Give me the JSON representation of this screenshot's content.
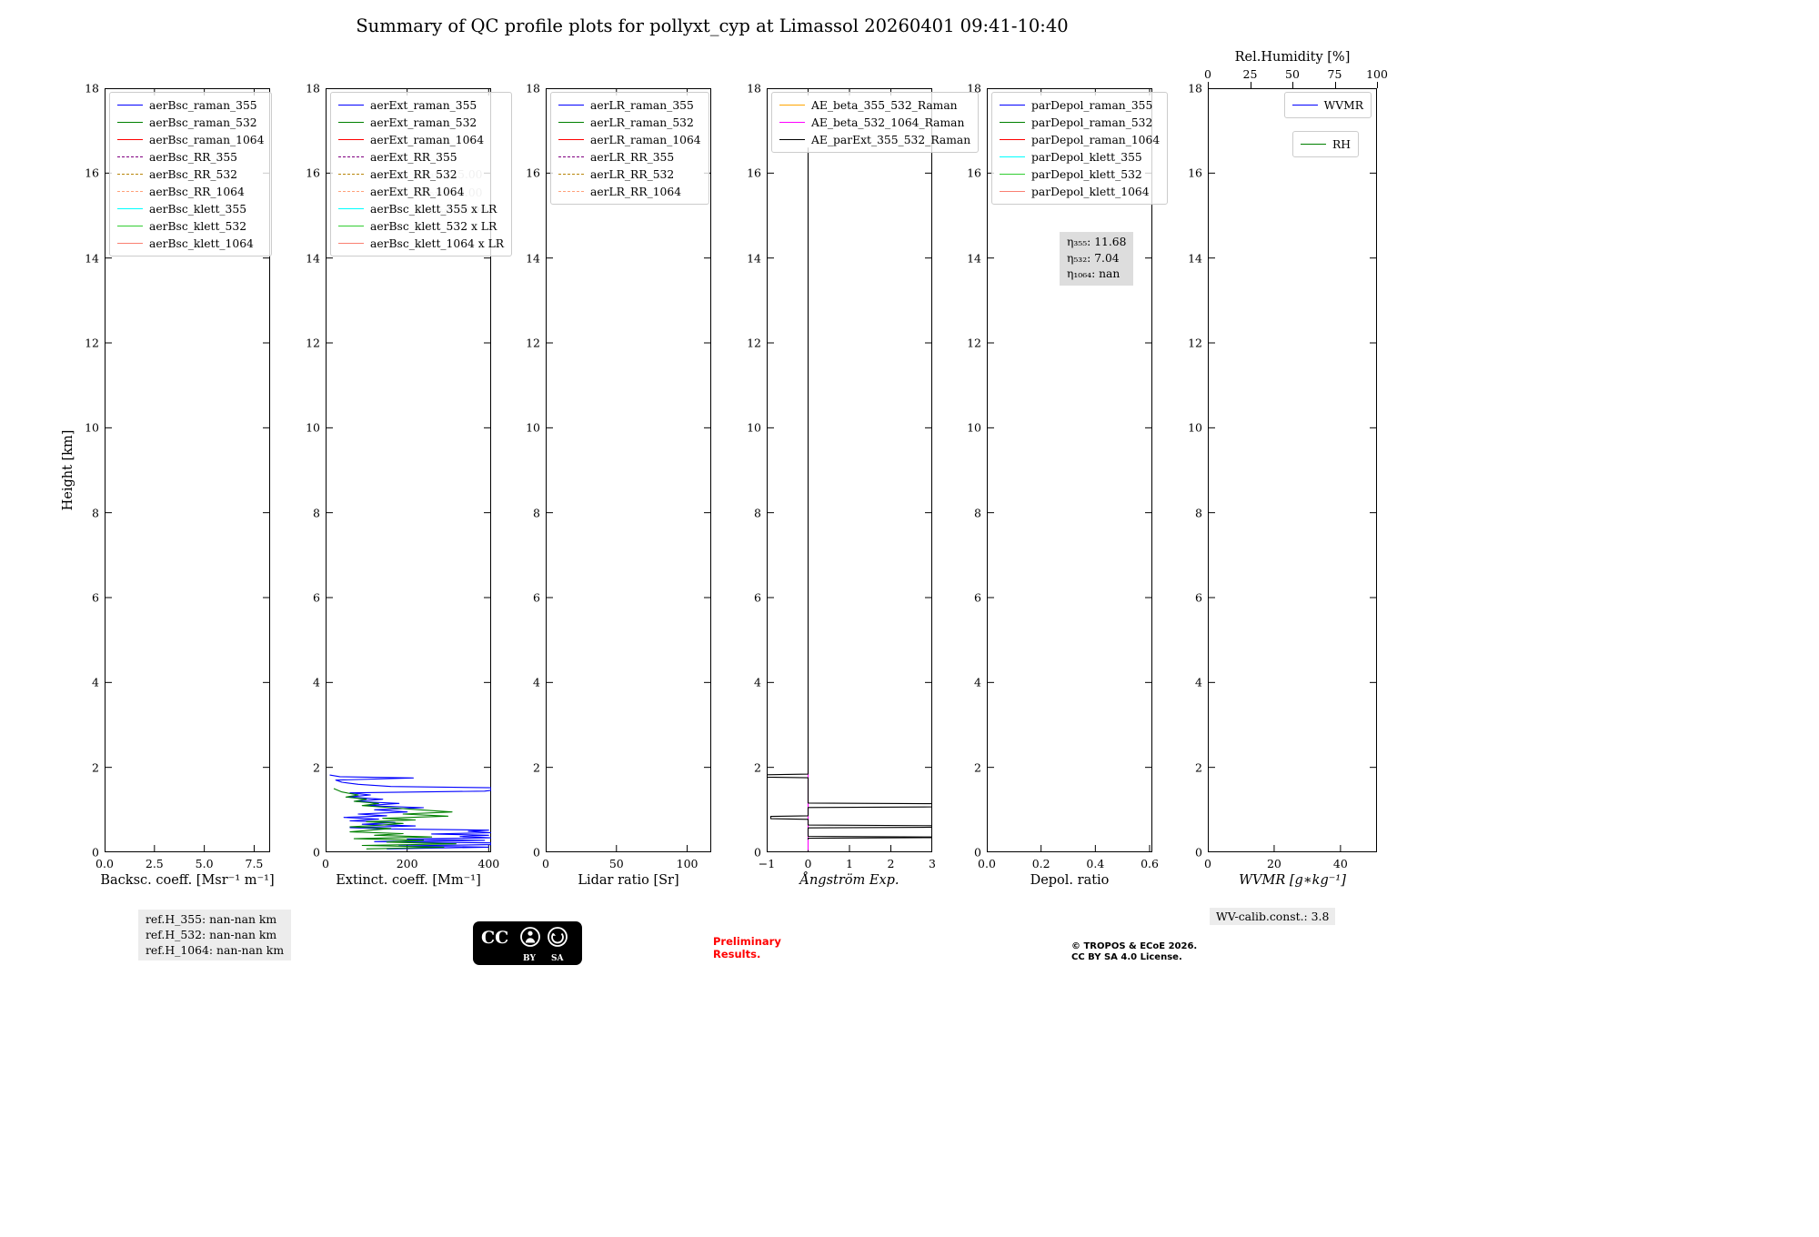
{
  "title": "Summary of QC profile plots for pollyxt_cyp at Limassol 20260401 09:41-10:40",
  "chart_data": {
    "type": "line",
    "title": "Summary of QC profile plots for pollyxt_cyp at Limassol 20260401 09:41-10:40",
    "ylabel": "Height [km]",
    "ylim": [
      0,
      18
    ],
    "yticks": [
      0,
      2,
      4,
      6,
      8,
      10,
      12,
      14,
      16,
      18
    ],
    "panels": [
      {
        "id": "backscatter",
        "xlabel": "Backsc. coeff. [Msr⁻¹ m⁻¹]",
        "xlim": [
          0,
          8.3
        ],
        "xticks": [
          0,
          2.5,
          5,
          7.5
        ],
        "xtick_labels": [
          "0.0",
          "2.5",
          "5.0",
          "7.5"
        ],
        "legend": [
          {
            "label": "aerBsc_raman_355",
            "color": "#0000ff",
            "dash": false
          },
          {
            "label": "aerBsc_raman_532",
            "color": "#008000",
            "dash": false
          },
          {
            "label": "aerBsc_raman_1064",
            "color": "#ff0000",
            "dash": false
          },
          {
            "label": "aerBsc_RR_355",
            "color": "#800080",
            "dash": true
          },
          {
            "label": "aerBsc_RR_532",
            "color": "#b8860b",
            "dash": true
          },
          {
            "label": "aerBsc_RR_1064",
            "color": "#ffa07a",
            "dash": true
          },
          {
            "label": "aerBsc_klett_355",
            "color": "#00ffff",
            "dash": false
          },
          {
            "label": "aerBsc_klett_532",
            "color": "#32cd32",
            "dash": false
          },
          {
            "label": "aerBsc_klett_1064",
            "color": "#fa8072",
            "dash": false
          }
        ],
        "series": []
      },
      {
        "id": "extinction",
        "xlabel": "Extinct. coeff. [Mm⁻¹]",
        "xlim": [
          0,
          406
        ],
        "xticks": [
          0,
          200,
          400
        ],
        "xtick_labels": [
          "0",
          "200",
          "400"
        ],
        "legend": [
          {
            "label": "aerExt_raman_355",
            "color": "#0000ff",
            "dash": false
          },
          {
            "label": "aerExt_raman_532",
            "color": "#008000",
            "dash": false
          },
          {
            "label": "aerExt_raman_1064",
            "color": "#ff0000",
            "dash": false
          },
          {
            "label": "aerExt_RR_355",
            "color": "#800080",
            "dash": true
          },
          {
            "label": "aerExt_RR_532",
            "color": "#b8860b",
            "dash": true
          },
          {
            "label": "aerExt_RR_1064",
            "color": "#ffa07a",
            "dash": true
          },
          {
            "label": "aerBsc_klett_355 x LR",
            "color": "#00ffff",
            "dash": false
          },
          {
            "label": "aerBsc_klett_532 x LR",
            "color": "#32cd32",
            "dash": false
          },
          {
            "label": "aerBsc_klett_1064 x LR",
            "color": "#fa8072",
            "dash": false
          }
        ],
        "annotation": {
          "kind": "plain",
          "lines": [
            "LR₃₅₅: 45.00",
            "LR₅₃₂: 40.00",
            "LR₁₀₆₄: 50.00"
          ]
        },
        "series": [
          {
            "name": "aerExt_raman_355",
            "color": "#0000ff",
            "points": [
              [
                150,
                0.08
              ],
              [
                400,
                0.12
              ],
              [
                180,
                0.15
              ],
              [
                406,
                0.18
              ],
              [
                406,
                0.22
              ],
              [
                120,
                0.25
              ],
              [
                390,
                0.28
              ],
              [
                200,
                0.31
              ],
              [
                406,
                0.34
              ],
              [
                330,
                0.37
              ],
              [
                400,
                0.4
              ],
              [
                260,
                0.43
              ],
              [
                406,
                0.46
              ],
              [
                350,
                0.49
              ],
              [
                400,
                0.52
              ],
              [
                150,
                0.55
              ],
              [
                60,
                0.58
              ],
              [
                220,
                0.62
              ],
              [
                90,
                0.66
              ],
              [
                170,
                0.7
              ],
              [
                60,
                0.74
              ],
              [
                130,
                0.78
              ],
              [
                45,
                0.82
              ],
              [
                150,
                0.86
              ],
              [
                80,
                0.9
              ],
              [
                200,
                0.95
              ],
              [
                120,
                1.0
              ],
              [
                240,
                1.05
              ],
              [
                100,
                1.1
              ],
              [
                180,
                1.15
              ],
              [
                70,
                1.2
              ],
              [
                140,
                1.25
              ],
              [
                55,
                1.3
              ],
              [
                110,
                1.35
              ],
              [
                60,
                1.4
              ],
              [
                390,
                1.44
              ],
              [
                406,
                1.46
              ],
              [
                406,
                1.52
              ],
              [
                160,
                1.55
              ],
              [
                80,
                1.6
              ],
              [
                40,
                1.65
              ],
              [
                25,
                1.7
              ],
              [
                215,
                1.75
              ],
              [
                35,
                1.78
              ],
              [
                10,
                1.82
              ]
            ]
          },
          {
            "name": "aerExt_raman_532",
            "color": "#008000",
            "points": [
              [
                100,
                0.08
              ],
              [
                290,
                0.12
              ],
              [
                90,
                0.16
              ],
              [
                320,
                0.2
              ],
              [
                150,
                0.24
              ],
              [
                240,
                0.28
              ],
              [
                70,
                0.32
              ],
              [
                260,
                0.36
              ],
              [
                120,
                0.4
              ],
              [
                190,
                0.44
              ],
              [
                60,
                0.48
              ],
              [
                110,
                0.52
              ],
              [
                160,
                0.56
              ],
              [
                60,
                0.6
              ],
              [
                140,
                0.64
              ],
              [
                190,
                0.68
              ],
              [
                100,
                0.72
              ],
              [
                220,
                0.76
              ],
              [
                140,
                0.8
              ],
              [
                300,
                0.85
              ],
              [
                190,
                0.9
              ],
              [
                310,
                0.95
              ],
              [
                230,
                1.0
              ],
              [
                160,
                1.05
              ],
              [
                90,
                1.1
              ],
              [
                130,
                1.15
              ],
              [
                70,
                1.2
              ],
              [
                100,
                1.25
              ],
              [
                50,
                1.3
              ],
              [
                80,
                1.35
              ],
              [
                40,
                1.42
              ],
              [
                20,
                1.5
              ]
            ]
          }
        ]
      },
      {
        "id": "lidar-ratio",
        "xlabel": "Lidar ratio [Sr]",
        "xlim": [
          0,
          117
        ],
        "xticks": [
          0,
          50,
          100
        ],
        "xtick_labels": [
          "0",
          "50",
          "100"
        ],
        "legend": [
          {
            "label": "aerLR_raman_355",
            "color": "#0000ff",
            "dash": false
          },
          {
            "label": "aerLR_raman_532",
            "color": "#008000",
            "dash": false
          },
          {
            "label": "aerLR_raman_1064",
            "color": "#ff0000",
            "dash": false
          },
          {
            "label": "aerLR_RR_355",
            "color": "#800080",
            "dash": true
          },
          {
            "label": "aerLR_RR_532",
            "color": "#b8860b",
            "dash": true
          },
          {
            "label": "aerLR_RR_1064",
            "color": "#ffa07a",
            "dash": true
          }
        ],
        "series": []
      },
      {
        "id": "angstroem",
        "xlabel": "Ångström Exp.",
        "italic": true,
        "xlim": [
          -1,
          3
        ],
        "xticks": [
          -1,
          0,
          1,
          2,
          3
        ],
        "xtick_labels": [
          "−1",
          "0",
          "1",
          "2",
          "3"
        ],
        "legend": [
          {
            "label": "AE_beta_355_532_Raman",
            "color": "#ffa500",
            "dash": false
          },
          {
            "label": "AE_beta_532_1064_Raman",
            "color": "#ff00ff",
            "dash": false
          },
          {
            "label": "AE_parExt_355_532_Raman",
            "color": "#000000",
            "dash": false
          }
        ],
        "series": [
          {
            "name": "AE_beta_532_1064_Raman",
            "color": "#ff00ff",
            "points": [
              [
                0,
                0.05
              ],
              [
                0,
                1.92
              ]
            ]
          },
          {
            "name": "AE_parExt_355_532_Raman",
            "color": "#000000",
            "points": [
              [
                0,
                0.3
              ],
              [
                0,
                0.33
              ],
              [
                3,
                0.345
              ],
              [
                3,
                0.36
              ],
              [
                0,
                0.375
              ],
              [
                0,
                0.575
              ],
              [
                3,
                0.59
              ],
              [
                3,
                0.625
              ],
              [
                0,
                0.64
              ],
              [
                0,
                0.775
              ],
              [
                -0.9,
                0.79
              ],
              [
                -0.9,
                0.845
              ],
              [
                0,
                0.86
              ],
              [
                0,
                1.055
              ],
              [
                3,
                1.07
              ],
              [
                3,
                1.145
              ],
              [
                0,
                1.16
              ],
              [
                0,
                1.755
              ],
              [
                -1,
                1.77
              ],
              [
                -1,
                1.825
              ],
              [
                0,
                1.84
              ],
              [
                0,
                16.6
              ]
            ]
          }
        ]
      },
      {
        "id": "depol",
        "xlabel": "Depol. ratio",
        "xlim": [
          0,
          0.61
        ],
        "xticks": [
          0,
          0.2,
          0.4,
          0.6
        ],
        "xtick_labels": [
          "0.0",
          "0.2",
          "0.4",
          "0.6"
        ],
        "legend": [
          {
            "label": "parDepol_raman_355",
            "color": "#0000ff",
            "dash": false
          },
          {
            "label": "parDepol_raman_532",
            "color": "#008000",
            "dash": false
          },
          {
            "label": "parDepol_raman_1064",
            "color": "#ff0000",
            "dash": false
          },
          {
            "label": "parDepol_klett_355",
            "color": "#00ffff",
            "dash": false
          },
          {
            "label": "parDepol_klett_532",
            "color": "#32cd32",
            "dash": false
          },
          {
            "label": "parDepol_klett_1064",
            "color": "#fa8072",
            "dash": false
          }
        ],
        "annotation": {
          "kind": "box",
          "lines": [
            "η₃₅₅: 11.68",
            "η₅₃₂: 7.04",
            "η₁₀₆₄: nan"
          ]
        },
        "series": []
      },
      {
        "id": "wvmr",
        "xlabel": "WVMR [g∗kg⁻¹]",
        "italic": true,
        "xlim": [
          0,
          51
        ],
        "xticks": [
          0,
          20,
          40
        ],
        "xtick_labels": [
          "0",
          "20",
          "40"
        ],
        "top_axis": {
          "label": "Rel.Humidity [%]",
          "lim": [
            0,
            100
          ],
          "ticks": [
            0,
            25,
            50,
            75,
            100
          ],
          "tick_labels": [
            "0",
            "25",
            "50",
            "75",
            "100"
          ]
        },
        "legend": [
          {
            "label": "WVMR",
            "color": "#0000ff",
            "dash": false
          }
        ],
        "legend2": [
          {
            "label": "RH",
            "color": "#008000",
            "dash": false
          }
        ],
        "series": []
      }
    ]
  },
  "footer": {
    "ref_box": [
      "ref.H_355: nan-nan km",
      "ref.H_532: nan-nan km",
      "ref.H_1064: nan-nan km"
    ],
    "badge": {
      "cc": "CC",
      "by": "BY",
      "sa": "SA"
    },
    "preliminary": [
      "Preliminary",
      "Results."
    ],
    "copyright": [
      "© TROPOS & ECoE 2026.",
      "CC BY SA 4.0 License."
    ],
    "wv_calib": "WV-calib.const.: 3.8"
  }
}
